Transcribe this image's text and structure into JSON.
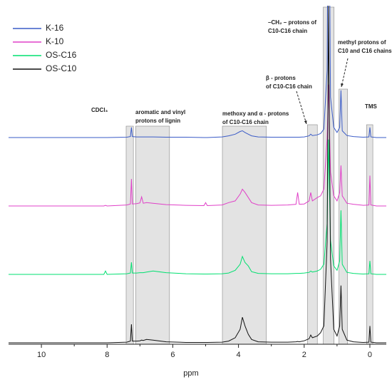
{
  "chart_data": {
    "type": "line",
    "xlabel": "ppm",
    "xlim": [
      11,
      -0.5
    ],
    "xticks": [
      10,
      8,
      6,
      4,
      2,
      0
    ],
    "xminor_ticks": [
      9,
      7,
      5,
      3,
      1
    ],
    "ylim": [
      0,
      100
    ],
    "x": [
      11,
      10,
      9,
      8.1,
      8.05,
      8.0,
      7.4,
      7.29,
      7.26,
      7.23,
      7.1,
      7.0,
      6.95,
      6.9,
      6.8,
      6.6,
      6.2,
      5.6,
      5.05,
      5.0,
      4.95,
      4.5,
      4.3,
      4.1,
      3.95,
      3.88,
      3.8,
      3.7,
      3.6,
      3.4,
      3.0,
      2.5,
      2.25,
      2.2,
      2.15,
      2.0,
      1.85,
      1.8,
      1.75,
      1.6,
      1.5,
      1.4,
      1.3,
      1.26,
      1.2,
      1.1,
      1.0,
      0.92,
      0.88,
      0.84,
      0.7,
      0.5,
      0.2,
      0.03,
      0.0,
      -0.03,
      -0.2,
      -0.5
    ],
    "series": [
      {
        "name": "K-16",
        "color": "#3a5bc7",
        "values": [
          0,
          0,
          0,
          0,
          0,
          0,
          0.1,
          0.3,
          3,
          0.3,
          0.2,
          0.2,
          0.2,
          0.2,
          0.2,
          0.2,
          0.1,
          0.1,
          0,
          0,
          0,
          0.2,
          0.5,
          1,
          1.8,
          2,
          1.5,
          1,
          0.5,
          0.2,
          0.1,
          0.1,
          0.1,
          0.1,
          0.1,
          0.2,
          0.5,
          1,
          0.6,
          0.8,
          1.2,
          2.5,
          20,
          100,
          12,
          3,
          1.5,
          3,
          14,
          2,
          0.6,
          0.3,
          0.1,
          0.2,
          3,
          0.2,
          0,
          0
        ]
      },
      {
        "name": "K-10",
        "color": "#e040c8",
        "values": [
          0,
          0,
          0,
          0,
          0.2,
          0,
          0.3,
          0.6,
          8,
          0.6,
          0.7,
          0.9,
          2.7,
          0.8,
          1,
          0.8,
          0.4,
          0.2,
          0.1,
          1,
          0.1,
          0.3,
          1,
          1.5,
          3.5,
          5,
          4,
          2.5,
          1,
          0.3,
          0.2,
          0.3,
          0.5,
          4,
          0.5,
          0.6,
          1.5,
          4,
          1.5,
          2.5,
          3,
          5,
          20,
          36,
          10,
          3,
          1.5,
          4,
          12,
          3,
          0.8,
          0.5,
          0.2,
          0.3,
          9,
          0.3,
          0,
          0
        ]
      },
      {
        "name": "OS-C16",
        "color": "#00e070",
        "values": [
          0,
          0,
          0,
          0,
          1,
          0,
          0.2,
          0.4,
          3.6,
          0.4,
          0.4,
          0.5,
          0.5,
          0.5,
          0.7,
          1,
          0.5,
          0.2,
          0.1,
          0.1,
          0.1,
          0.2,
          0.4,
          1.2,
          3,
          5.3,
          3.5,
          2.5,
          0.8,
          0.3,
          0.2,
          0.2,
          0.3,
          0.3,
          0.3,
          0.4,
          0.6,
          1,
          0.7,
          1,
          1.5,
          3,
          15,
          40,
          10,
          2.5,
          1.2,
          4,
          19,
          3,
          0.6,
          0.3,
          0.1,
          0.2,
          4,
          0.2,
          0,
          0
        ]
      },
      {
        "name": "OS-C10",
        "color": "#111111",
        "values": [
          0,
          0,
          0,
          0,
          0,
          0,
          0.2,
          0.5,
          5.5,
          0.5,
          0.5,
          0.6,
          0.8,
          0.7,
          1,
          0.8,
          0.3,
          0.1,
          0.1,
          0.1,
          0.1,
          0.2,
          0.5,
          1.5,
          4,
          7.6,
          5,
          2.5,
          1,
          0.3,
          0.2,
          0.2,
          0.3,
          0.4,
          0.3,
          0.6,
          1.2,
          2.3,
          1.5,
          2,
          3,
          5,
          30,
          100,
          25,
          4,
          2,
          5,
          17,
          4,
          0.8,
          0.3,
          0.1,
          0.2,
          5,
          0.2,
          0,
          0
        ]
      }
    ],
    "regions": [
      {
        "label": [
          "CDCl₃"
        ],
        "range": [
          7.42,
          7.2
        ]
      },
      {
        "label": [
          "aromatic and vinyl",
          "protons of lignin"
        ],
        "range": [
          7.13,
          6.1
        ]
      },
      {
        "label": [
          "methoxy and α - protons",
          "of C10-C16 chain"
        ],
        "range": [
          4.49,
          3.15
        ]
      },
      {
        "label": [
          "β - protons",
          "of C10-C16 chain"
        ],
        "range": [
          1.9,
          1.6
        ]
      },
      {
        "label": [
          "–CH₂ – protons of",
          "C10-C16 chain"
        ],
        "range": [
          1.42,
          1.09
        ]
      },
      {
        "label": [
          "methyl protons of",
          "C10 and C16 chains"
        ],
        "range": [
          0.94,
          0.68
        ]
      },
      {
        "label": [
          "TMS"
        ],
        "range": [
          0.1,
          -0.09
        ]
      }
    ]
  }
}
